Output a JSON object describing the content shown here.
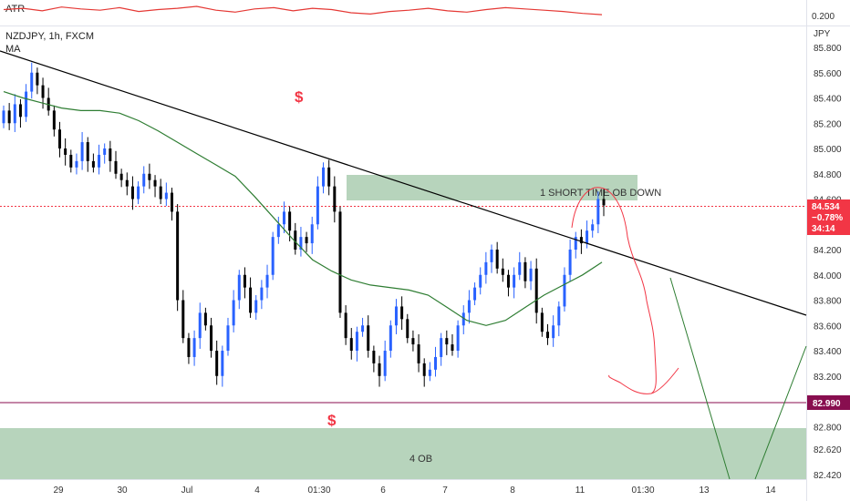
{
  "atr_panel": {
    "label": "ATR",
    "value": "0.200"
  },
  "header": {
    "symbol_line": "NZDJPY, 1h, FXCM",
    "indicator": "MA"
  },
  "price_axis": {
    "currency": "JPY",
    "ticks": [
      "85.800",
      "85.600",
      "85.400",
      "85.200",
      "85.000",
      "84.800",
      "84.600",
      "84.400",
      "84.200",
      "84.000",
      "83.800",
      "83.600",
      "83.400",
      "83.200",
      "83.000",
      "82.800",
      "82.620",
      "82.420"
    ]
  },
  "current_price": {
    "price": "84.534",
    "change": "−0.78%",
    "countdown": "34:14"
  },
  "level_tag": {
    "value": "82.990"
  },
  "time_axis": {
    "labels": [
      "29",
      "30",
      "Jul",
      "4",
      "01:30",
      "6",
      "7",
      "8",
      "11",
      "01:30",
      "13",
      "14"
    ]
  },
  "annotations": {
    "zone_top_label": "1 SHORT TIME OB DOWN",
    "zone_bottom_label": "4 OB",
    "dollar_top": "$",
    "dollar_bottom": "$"
  },
  "colors": {
    "up_candle": "#2962ff",
    "down_candle": "#000000",
    "ma_line": "#2e7d32",
    "atr_line": "#e53935",
    "zone_fill": "#a5c9ab",
    "price_tag": "#f23645",
    "level_tag": "#880e4f",
    "drawing_red": "#f23645",
    "drawing_green": "#2e7d32"
  },
  "chart_data": {
    "type": "candlestick",
    "symbol": "NZDJPY",
    "interval": "1h",
    "ylim": [
      82.4,
      85.85
    ],
    "candles_close": [
      85.3,
      85.2,
      85.35,
      85.25,
      85.45,
      85.6,
      85.5,
      85.4,
      85.3,
      85.15,
      85.0,
      84.95,
      84.85,
      84.9,
      85.05,
      84.9,
      84.85,
      84.95,
      85.0,
      84.9,
      84.8,
      84.75,
      84.7,
      84.6,
      84.7,
      84.8,
      84.75,
      84.7,
      84.6,
      84.65,
      84.5,
      83.8,
      83.5,
      83.35,
      83.5,
      83.7,
      83.6,
      83.4,
      83.2,
      83.4,
      83.6,
      83.8,
      84.0,
      83.9,
      83.7,
      83.8,
      83.9,
      84.0,
      84.3,
      84.4,
      84.5,
      84.35,
      84.2,
      84.3,
      84.25,
      84.4,
      84.7,
      84.85,
      84.7,
      84.5,
      83.7,
      83.5,
      83.4,
      83.55,
      83.6,
      83.4,
      83.3,
      83.2,
      83.4,
      83.6,
      83.75,
      83.65,
      83.5,
      83.45,
      83.3,
      83.2,
      83.25,
      83.35,
      83.5,
      83.45,
      83.4,
      83.6,
      83.7,
      83.8,
      83.9,
      84.0,
      84.1,
      84.2,
      84.05,
      84.0,
      83.9,
      84.0,
      84.1,
      83.95,
      84.05,
      83.7,
      83.55,
      83.5,
      83.6,
      83.75,
      84.0,
      84.2,
      84.3,
      84.25,
      84.35,
      84.4,
      84.6,
      84.55
    ],
    "ma_values": [
      85.45,
      85.4,
      85.36,
      85.32,
      85.3,
      85.3,
      85.28,
      85.22,
      85.14,
      85.05,
      84.96,
      84.87,
      84.78,
      84.62,
      84.45,
      84.28,
      84.12,
      84.03,
      83.96,
      83.92,
      83.9,
      83.88,
      83.84,
      83.74,
      83.64,
      83.6,
      83.64,
      83.74,
      83.84,
      83.92,
      84.0,
      84.1
    ],
    "levels": [
      {
        "name": "support",
        "value": 82.99
      },
      {
        "name": "current",
        "value": 84.534
      }
    ],
    "zones": [
      {
        "label": "1 SHORT TIME OB DOWN",
        "from": 84.58,
        "to": 84.76
      },
      {
        "label": "4 OB",
        "from": 82.4,
        "to": 82.8
      }
    ],
    "atr_values": [
      0.21,
      0.212,
      0.208,
      0.214,
      0.211,
      0.209,
      0.213,
      0.207,
      0.21,
      0.212,
      0.215,
      0.209,
      0.206,
      0.211,
      0.213,
      0.208,
      0.212,
      0.21,
      0.205,
      0.203,
      0.207,
      0.209,
      0.212,
      0.208,
      0.206,
      0.21,
      0.213,
      0.211,
      0.209,
      0.207,
      0.204,
      0.202
    ]
  }
}
